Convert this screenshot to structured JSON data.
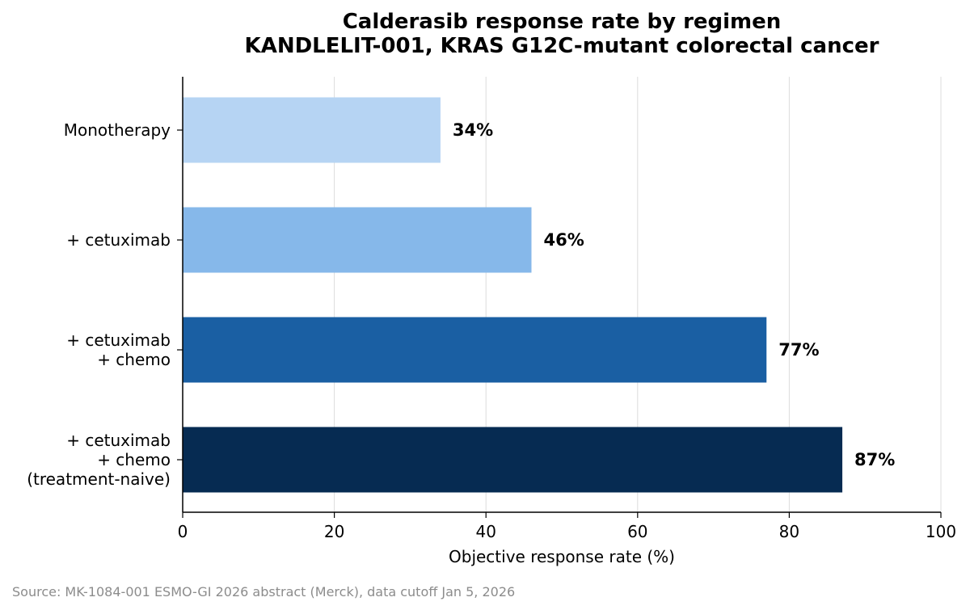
{
  "chart_data": {
    "type": "bar",
    "orientation": "horizontal",
    "title": [
      "Calderasib response rate by regimen",
      "KANDLELIT-001, KRAS G12C-mutant colorectal cancer"
    ],
    "categories": [
      [
        "Monotherapy"
      ],
      [
        "+ cetuximab"
      ],
      [
        "+ cetuximab",
        "+ chemo"
      ],
      [
        "+ cetuximab",
        "+ chemo",
        "(treatment-naive)"
      ]
    ],
    "values": [
      34,
      46,
      77,
      87
    ],
    "value_labels": [
      "34%",
      "46%",
      "77%",
      "87%"
    ],
    "colors": [
      "#b6d4f3",
      "#86b8ea",
      "#1a5fa3",
      "#062b52"
    ],
    "xlabel": "Objective response rate (%)",
    "ylabel": "",
    "xlim": [
      0,
      100
    ],
    "xticks": [
      0,
      20,
      40,
      60,
      80,
      100
    ],
    "grid": "vertical",
    "source": "Source: MK-1084-001 ESMO-GI 2026 abstract (Merck), data cutoff Jan 5, 2026"
  }
}
